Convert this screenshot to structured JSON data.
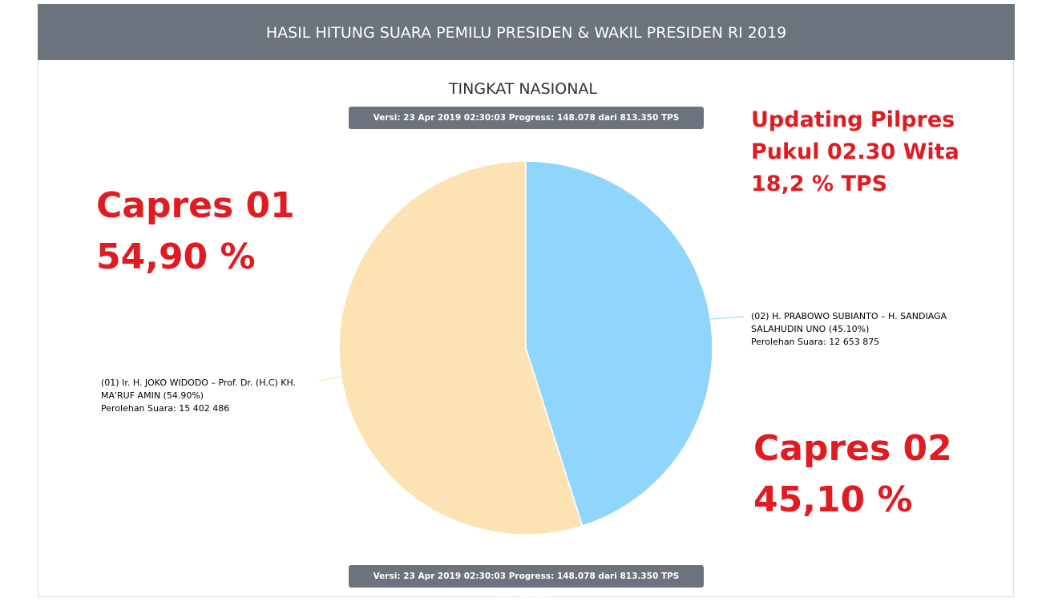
{
  "chart_data": {
    "type": "pie",
    "title": "HASIL HITUNG SUARA PEMILU PRESIDEN & WAKIL PRESIDEN RI 2019",
    "subtitle": "TINGKAT NASIONAL",
    "version": "Versi: 23 Apr 2019 02:30:03 Progress: 148.078 dari 813.350 TPS (18.20594%)",
    "categories": [
      "(01) Ir. H. JOKO WIDODO – Prof. Dr. (H.C) KH. MA'RUF AMIN",
      "(02) H. PRABOWO SUBIANTO – H. SANDIAGA SALAHUDIN UNO"
    ],
    "values": [
      54.9,
      45.1
    ],
    "value_labels": [
      "(54.90%)",
      "(45.10%)"
    ],
    "colors": [
      "#fde2b3",
      "#90d5fb"
    ],
    "votes_label": "Perolehan Suara:",
    "votes": [
      15402486,
      12653875
    ],
    "votes_labels": [
      "15 402 486",
      "12 653 875"
    ],
    "annotations": {
      "update": [
        "Updating Pilpres",
        "Pukul 02.30 Wita",
        "18,2 % TPS"
      ],
      "capres01": [
        "Capres 01",
        "54,90 %"
      ],
      "capres02": [
        "Capres 02",
        "45,10 %"
      ]
    }
  }
}
